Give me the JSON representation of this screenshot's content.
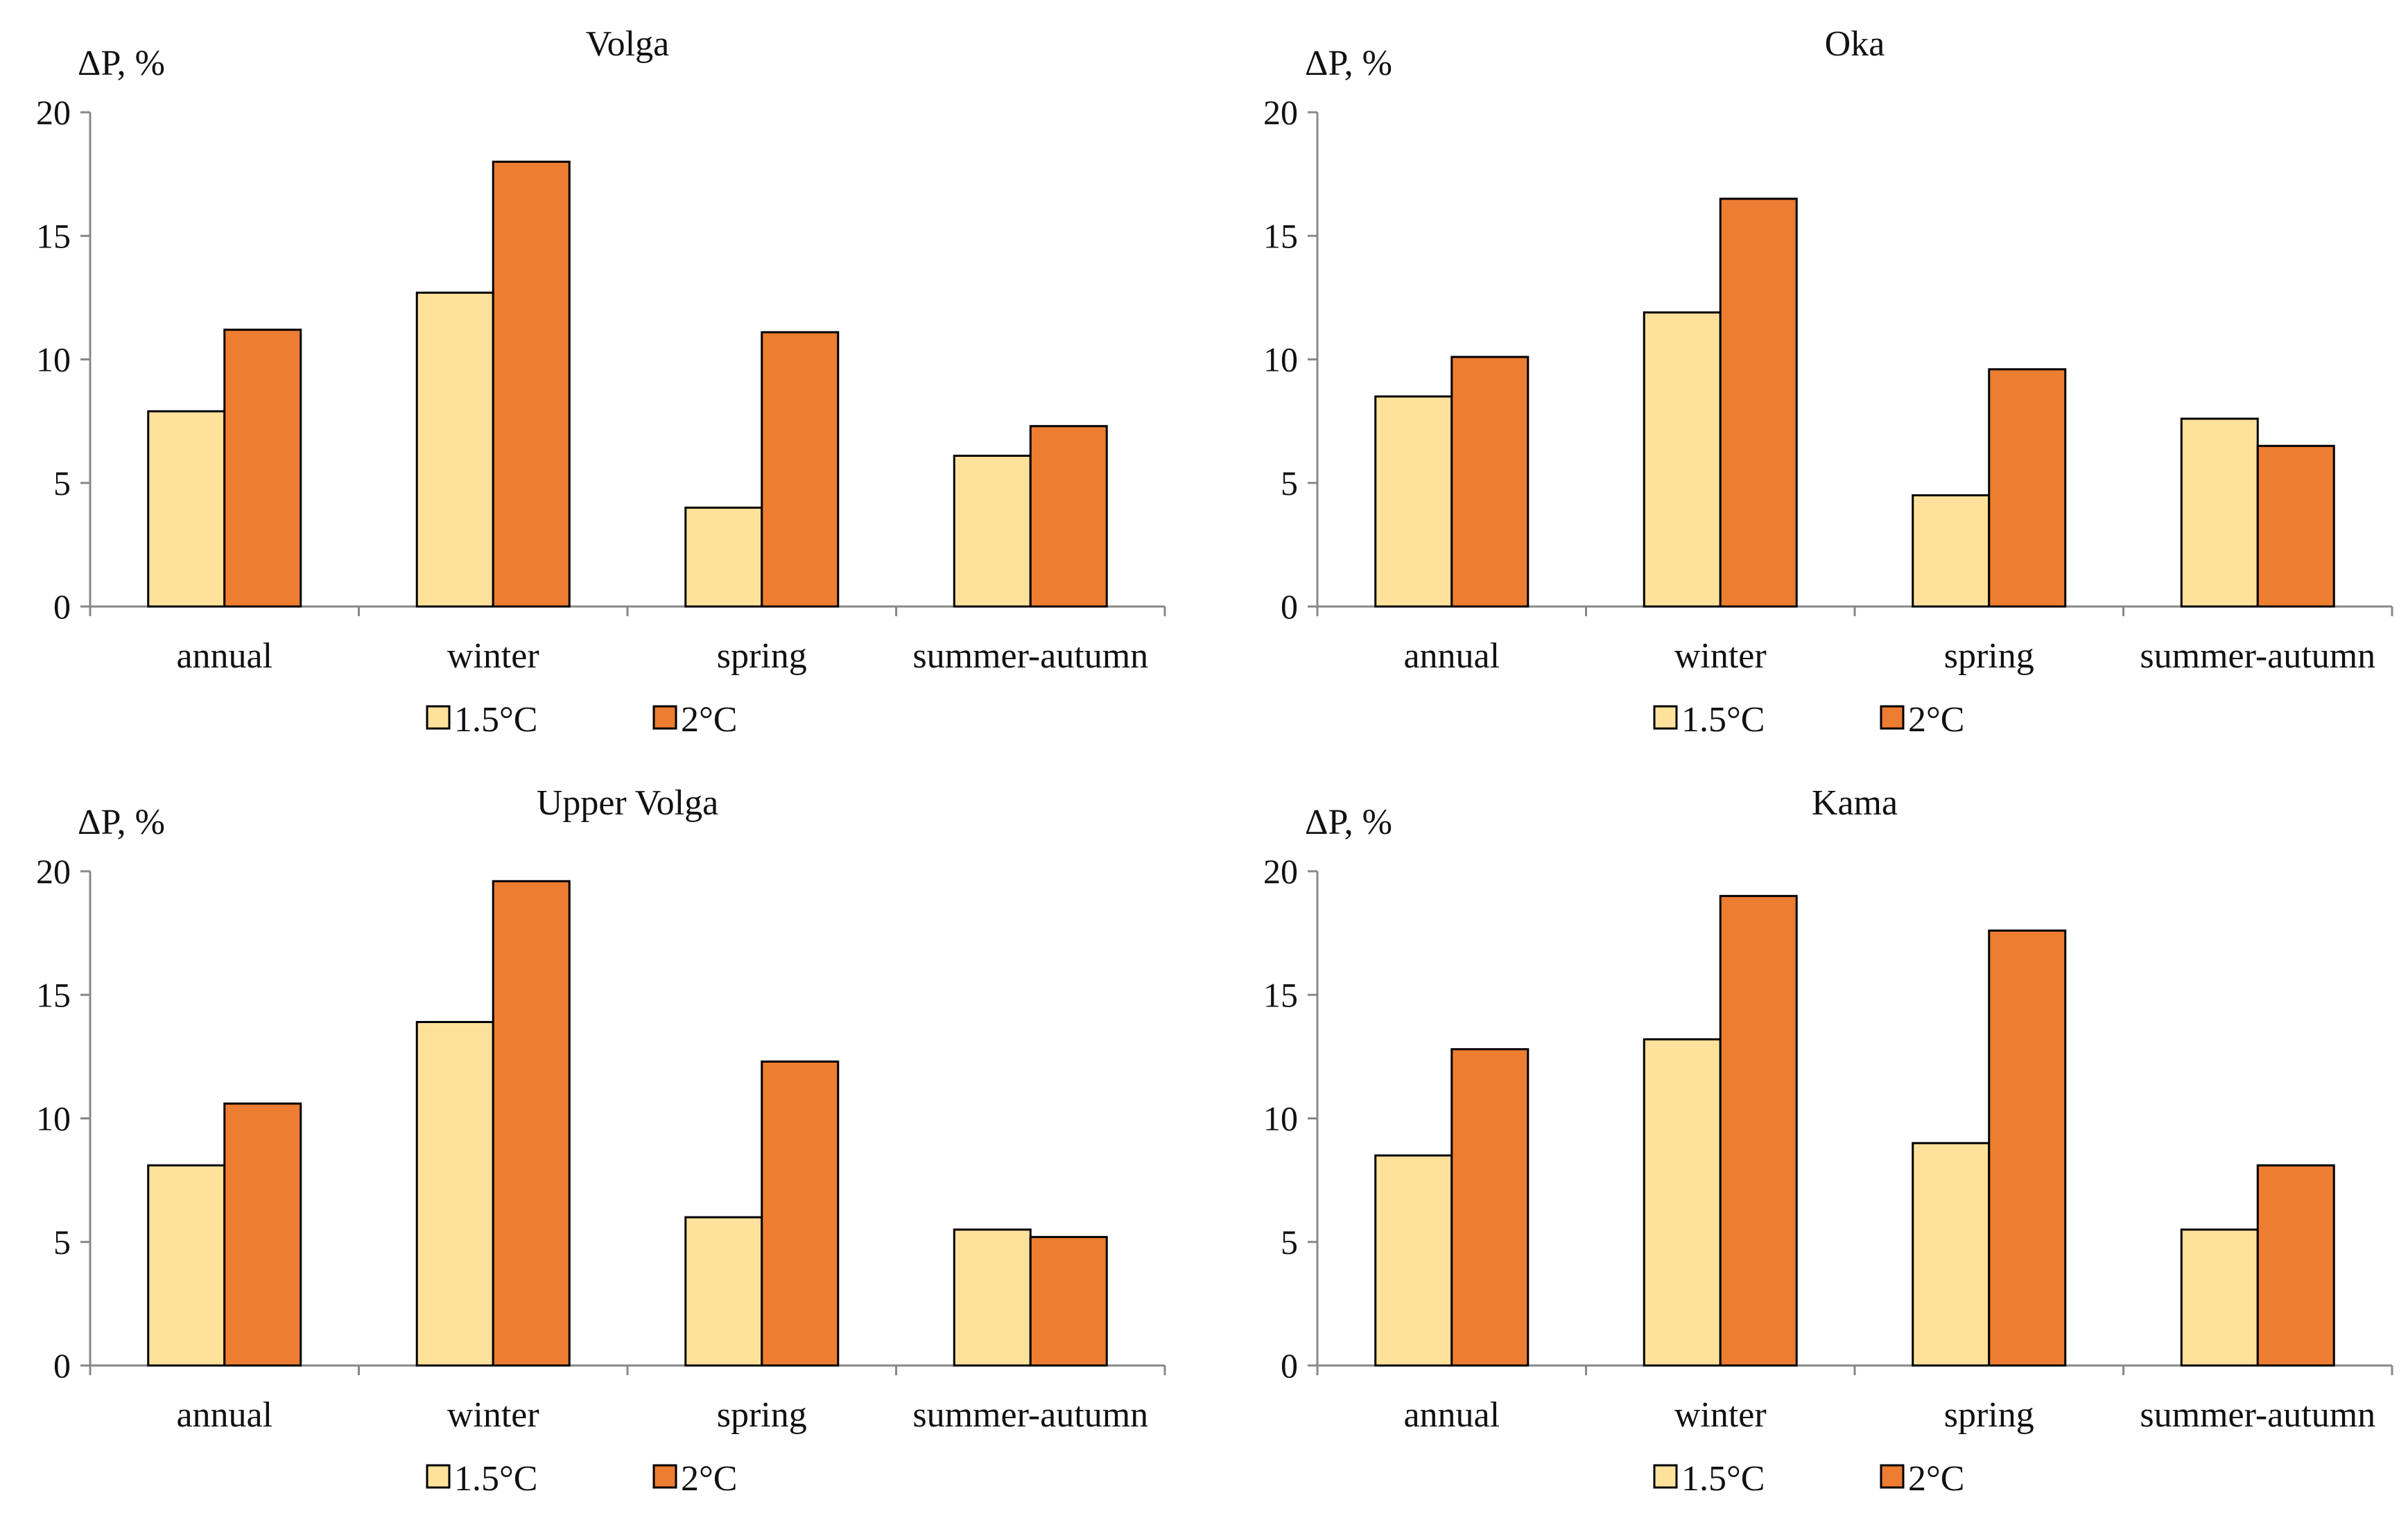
{
  "colors": {
    "series_1_5": "#FEE29B",
    "series_2": "#ED7D31"
  },
  "chart_data": [
    {
      "type": "bar",
      "title": "Volga",
      "ylabel": "ΔP, %",
      "ylim": [
        0,
        20
      ],
      "yticks": [
        0,
        5,
        10,
        15,
        20
      ],
      "categories": [
        "annual",
        "winter",
        "spring",
        "summer-autumn"
      ],
      "series": [
        {
          "name": "1.5°C",
          "values": [
            7.9,
            12.7,
            4.0,
            6.1
          ]
        },
        {
          "name": "2°C",
          "values": [
            11.2,
            18.0,
            11.1,
            7.3
          ]
        }
      ],
      "legend": "bottom"
    },
    {
      "type": "bar",
      "title": "Oka",
      "ylabel": "ΔP, %",
      "ylim": [
        0,
        20
      ],
      "yticks": [
        0,
        5,
        10,
        15,
        20
      ],
      "categories": [
        "annual",
        "winter",
        "spring",
        "summer-autumn"
      ],
      "series": [
        {
          "name": "1.5°C",
          "values": [
            8.5,
            11.9,
            4.5,
            7.6
          ]
        },
        {
          "name": "2°C",
          "values": [
            10.1,
            16.5,
            9.6,
            6.5
          ]
        }
      ],
      "legend": "bottom"
    },
    {
      "type": "bar",
      "title": "Upper Volga",
      "ylabel": "ΔP, %",
      "ylim": [
        0,
        20
      ],
      "yticks": [
        0,
        5,
        10,
        15,
        20
      ],
      "categories": [
        "annual",
        "winter",
        "spring",
        "summer-autumn"
      ],
      "series": [
        {
          "name": "1.5°C",
          "values": [
            8.1,
            13.9,
            6.0,
            5.5
          ]
        },
        {
          "name": "2°C",
          "values": [
            10.6,
            19.6,
            12.3,
            5.2
          ]
        }
      ],
      "legend": "bottom"
    },
    {
      "type": "bar",
      "title": "Kama",
      "ylabel": "ΔP, %",
      "ylim": [
        0,
        20
      ],
      "yticks": [
        0,
        5,
        10,
        15,
        20
      ],
      "categories": [
        "annual",
        "winter",
        "spring",
        "summer-autumn"
      ],
      "series": [
        {
          "name": "1.5°C",
          "values": [
            8.5,
            13.2,
            9.0,
            5.5
          ]
        },
        {
          "name": "2°C",
          "values": [
            12.8,
            19.0,
            17.6,
            8.1
          ]
        }
      ],
      "legend": "bottom"
    }
  ]
}
